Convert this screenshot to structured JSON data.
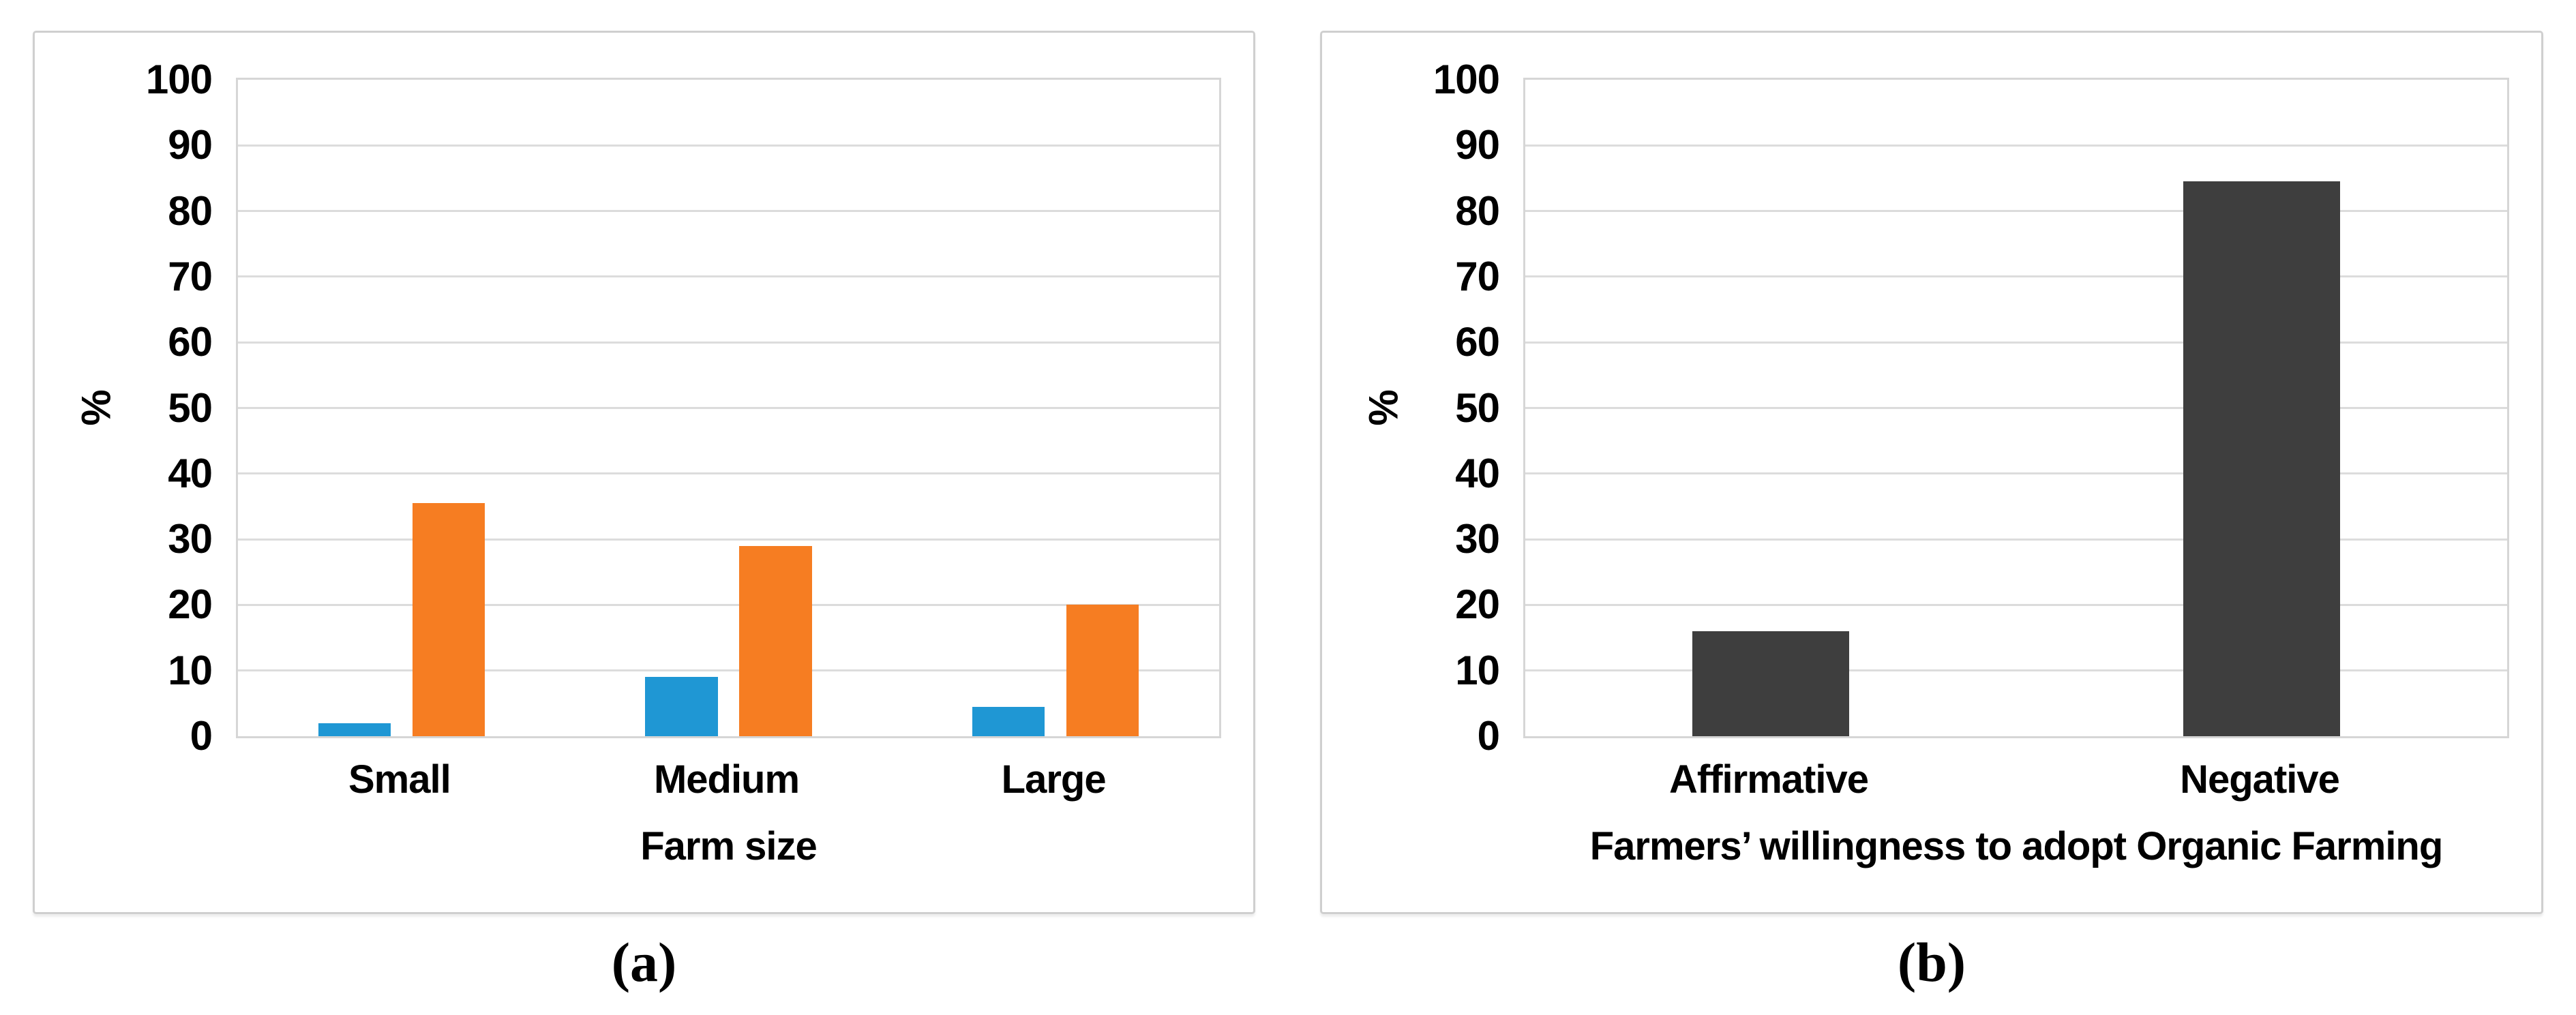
{
  "figure": {
    "background": "#ffffff",
    "colors": {
      "panel_border": "#cfcfcf",
      "gridline": "#dcdcdc",
      "text": "#000000"
    }
  },
  "chart_data": [
    {
      "type": "bar",
      "caption": "(a)",
      "title": "",
      "categories": [
        "Small",
        "Medium",
        "Large"
      ],
      "series": [
        {
          "name": "series-1",
          "color": "#1F97D4",
          "values": [
            2,
            9,
            4.5
          ]
        },
        {
          "name": "series-2",
          "color": "#F67D22",
          "values": [
            35.5,
            29,
            20
          ]
        }
      ],
      "xlabel": "Farm size",
      "ylabel": "%",
      "ylim": [
        0,
        100
      ],
      "ytick_step": 10,
      "grid": true,
      "legend": "none",
      "bar_width_frac": 0.222,
      "bar_gap_frac": 0.066
    },
    {
      "type": "bar",
      "caption": "(b)",
      "title": "",
      "categories": [
        "Affirmative",
        "Negative"
      ],
      "series": [
        {
          "name": "series-1",
          "color": "#3E3E3E",
          "values": [
            16,
            84.5
          ]
        }
      ],
      "xlabel": "Farmers’ willingness to adopt Organic Farming",
      "ylabel": "%",
      "ylim": [
        0,
        100
      ],
      "ytick_step": 10,
      "grid": true,
      "legend": "none",
      "bar_width_frac": 0.32,
      "bar_gap_frac": 0
    }
  ]
}
